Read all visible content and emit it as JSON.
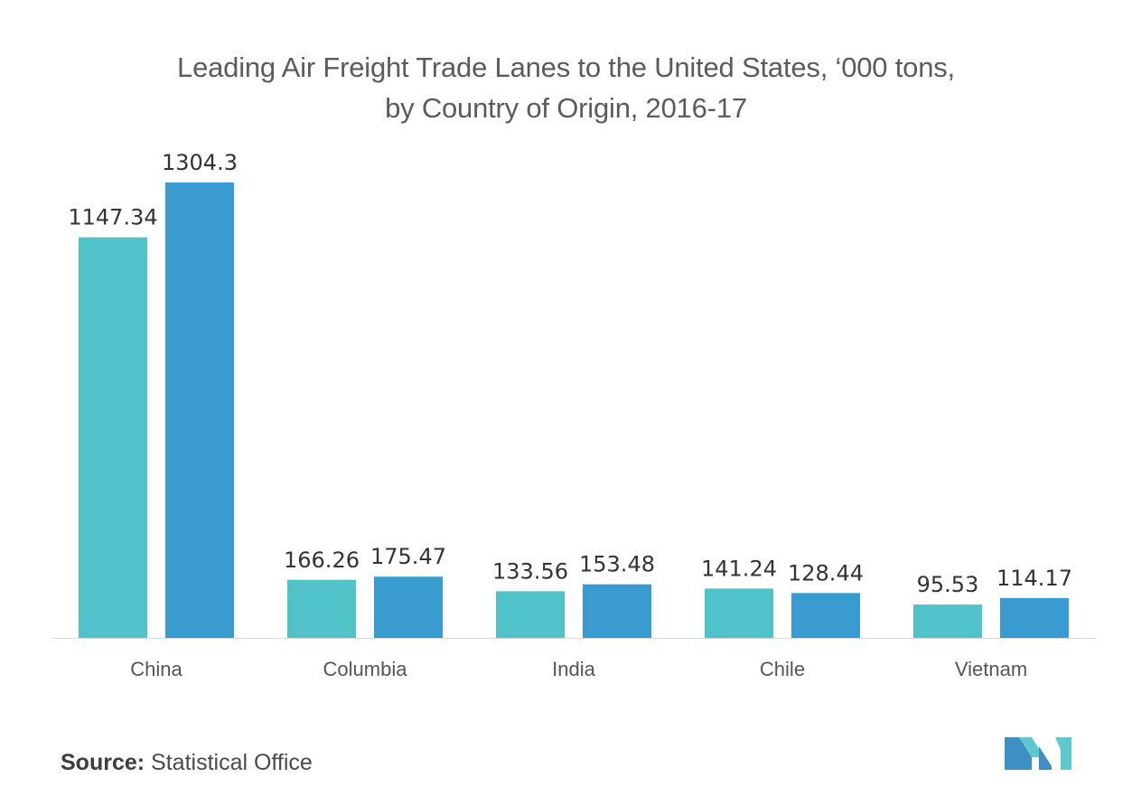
{
  "chart_data": {
    "type": "bar",
    "title_line1": "Leading Air Freight Trade Lanes to the United States, ‘000 tons,",
    "title_line2": "by Country of Origin, 2016-17",
    "categories": [
      "China",
      "Columbia",
      "India",
      "Chile",
      "Vietnam"
    ],
    "series": [
      {
        "values": [
          1147.34,
          166.26,
          133.56,
          141.24,
          95.53
        ],
        "color": "#4fc3c8"
      },
      {
        "values": [
          1304.3,
          175.47,
          153.48,
          128.44,
          114.17
        ],
        "color": "#3a9bd0"
      }
    ],
    "data_labels": [
      [
        "1147.34",
        "166.26",
        "133.56",
        "141.24",
        "95.53"
      ],
      [
        "1304.3",
        "175.47",
        "153.48",
        "128.44",
        "114.17"
      ]
    ],
    "ylim": [
      0,
      1304.3
    ],
    "grid": false,
    "legend": "none"
  },
  "source": {
    "label": "Source:",
    "text": "Statistical Office"
  },
  "logo": {
    "colors": [
      "#3d8fc4",
      "#5fc8cf",
      "#2b6e9e"
    ]
  }
}
